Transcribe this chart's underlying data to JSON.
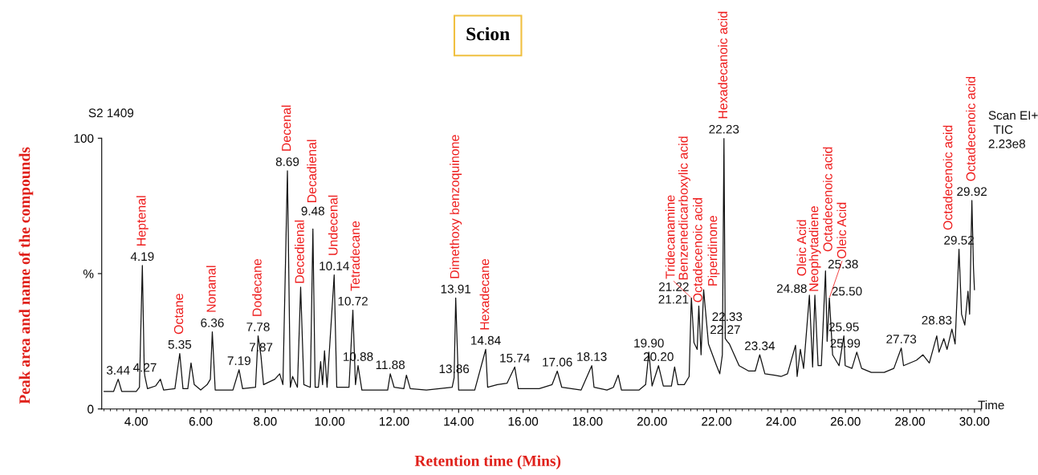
{
  "chart_data": {
    "type": "line",
    "title": "Scion",
    "xlabel": "Retention time (Mins)",
    "ylabel": "Peak area and name of the compounds",
    "xlim": [
      2.93,
      30.2
    ],
    "ylim": [
      0,
      100
    ],
    "xticks": [
      {
        "value": 4,
        "label": "4.00"
      },
      {
        "value": 6,
        "label": "6.00"
      },
      {
        "value": 8,
        "label": "8.00"
      },
      {
        "value": 10,
        "label": "10.00"
      },
      {
        "value": 12,
        "label": "12.00"
      },
      {
        "value": 14,
        "label": "14.00"
      },
      {
        "value": 16,
        "label": "16.00"
      },
      {
        "value": 18,
        "label": "18.00"
      },
      {
        "value": 20,
        "label": "20.00"
      },
      {
        "value": 22,
        "label": "22.00"
      },
      {
        "value": 24,
        "label": "24.00"
      },
      {
        "value": 26,
        "label": "26.00"
      },
      {
        "value": 28,
        "label": "28.00"
      },
      {
        "value": 30,
        "label": "30.00"
      }
    ],
    "yticks": [
      0,
      {
        "value": 50,
        "label": "%"
      },
      100
    ],
    "grid": false,
    "marker": "none",
    "line_style": "solid",
    "series": [
      {
        "color": "#111111",
        "x": [
          3.0,
          3.3,
          3.44,
          3.55,
          4.0,
          4.1,
          4.19,
          4.25,
          4.27,
          4.35,
          4.6,
          4.75,
          4.85,
          5.2,
          5.35,
          5.45,
          5.6,
          5.7,
          5.8,
          6.0,
          6.2,
          6.3,
          6.36,
          6.45,
          7.0,
          7.19,
          7.3,
          7.7,
          7.78,
          7.87,
          7.95,
          8.3,
          8.45,
          8.55,
          8.69,
          8.78,
          8.85,
          9.0,
          9.1,
          9.2,
          9.4,
          9.48,
          9.55,
          9.65,
          9.72,
          9.78,
          9.84,
          9.92,
          10.14,
          10.22,
          10.6,
          10.72,
          10.8,
          10.88,
          11.0,
          11.8,
          11.88,
          12.0,
          12.3,
          12.38,
          12.5,
          13.0,
          13.4,
          13.8,
          13.86,
          13.91,
          14.0,
          14.5,
          14.84,
          14.9,
          15.2,
          15.5,
          15.74,
          15.85,
          16.5,
          16.9,
          17.06,
          17.2,
          17.8,
          18.13,
          18.2,
          18.6,
          18.8,
          18.95,
          19.05,
          19.6,
          19.8,
          19.9,
          20.0,
          20.2,
          20.35,
          20.6,
          20.7,
          20.8,
          21.0,
          21.15,
          21.21,
          21.22,
          21.3,
          21.4,
          21.45,
          21.52,
          21.6,
          21.75,
          22.0,
          22.1,
          22.18,
          22.23,
          22.27,
          22.33,
          22.4,
          22.7,
          23.0,
          23.2,
          23.34,
          23.5,
          23.8,
          24.0,
          24.2,
          24.45,
          24.5,
          24.6,
          24.7,
          24.88,
          24.98,
          25.05,
          25.15,
          25.25,
          25.38,
          25.43,
          25.5,
          25.6,
          25.7,
          25.8,
          25.95,
          25.99,
          26.2,
          26.35,
          26.5,
          26.8,
          27.2,
          27.5,
          27.73,
          27.8,
          28.2,
          28.4,
          28.6,
          28.83,
          28.9,
          29.05,
          29.15,
          29.3,
          29.4,
          29.52,
          29.6,
          29.7,
          29.8,
          29.85,
          29.92,
          29.97,
          30.0
        ],
        "values": [
          6.5,
          6.5,
          11,
          6.5,
          6.5,
          8,
          53,
          14,
          12,
          7.5,
          8.5,
          11,
          7,
          7.5,
          20.5,
          7.5,
          7.5,
          17,
          9,
          7,
          9,
          11,
          28.5,
          7,
          7,
          14.5,
          7.5,
          8,
          27,
          19.5,
          9,
          11,
          13,
          9,
          88,
          8,
          12,
          8,
          45,
          9,
          8,
          66.5,
          8,
          8,
          17.5,
          9,
          21.5,
          8,
          49.5,
          8,
          8,
          36.5,
          9,
          16,
          7,
          7,
          13,
          8,
          7.5,
          12.5,
          7.5,
          7,
          7.5,
          8,
          11.5,
          41,
          7,
          7,
          22,
          8,
          9,
          9.5,
          15.5,
          7.5,
          7.5,
          9,
          14,
          8,
          7,
          16,
          8,
          7,
          8,
          12.5,
          7,
          7,
          9,
          21,
          8.5,
          16,
          8.5,
          8.5,
          15.5,
          9,
          9,
          12,
          38,
          41,
          24.5,
          22,
          38,
          20,
          44,
          24,
          16,
          13,
          20,
          100,
          26,
          25,
          24,
          16,
          14,
          14,
          20,
          13,
          12.5,
          12,
          13,
          23.5,
          12,
          22,
          15,
          42,
          15.5,
          42,
          16,
          16,
          51,
          25,
          41,
          20,
          18,
          16,
          27,
          16,
          15,
          21,
          15,
          13.5,
          13.5,
          15,
          22.5,
          16,
          18,
          20,
          17,
          27,
          21,
          26,
          22,
          29.5,
          24,
          59,
          35,
          31,
          43.5,
          35,
          77,
          52,
          44
        ]
      }
    ],
    "annotations": [
      {
        "text": "3.44",
        "x": 3.44,
        "y": 11
      },
      {
        "text": "4.19",
        "x": 4.19,
        "y": 53
      },
      {
        "text": "4.27",
        "x": 4.27,
        "y": 12
      },
      {
        "text": "5.35",
        "x": 5.35,
        "y": 20.5
      },
      {
        "text": "6.36",
        "x": 6.36,
        "y": 28.5
      },
      {
        "text": "7.19",
        "x": 7.19,
        "y": 14.5
      },
      {
        "text": "7.78",
        "x": 7.78,
        "y": 27
      },
      {
        "text": "7.87",
        "x": 7.87,
        "y": 19.5
      },
      {
        "text": "8.69",
        "x": 8.69,
        "y": 88
      },
      {
        "text": "9.48",
        "x": 9.48,
        "y": 66.5
      },
      {
        "text": "10.14",
        "x": 10.14,
        "y": 49.5
      },
      {
        "text": "10.72",
        "x": 10.72,
        "y": 36.5
      },
      {
        "text": "10.88",
        "x": 10.88,
        "y": 16
      },
      {
        "text": "11.88",
        "x": 11.88,
        "y": 13
      },
      {
        "text": "13.86",
        "x": 13.86,
        "y": 11.5
      },
      {
        "text": "13.91",
        "x": 13.91,
        "y": 41
      },
      {
        "text": "14.84",
        "x": 14.84,
        "y": 22
      },
      {
        "text": "15.74",
        "x": 15.74,
        "y": 15.5
      },
      {
        "text": "17.06",
        "x": 17.06,
        "y": 14
      },
      {
        "text": "18.13",
        "x": 18.13,
        "y": 16
      },
      {
        "text": "19.90",
        "x": 19.9,
        "y": 21
      },
      {
        "text": "20.20",
        "x": 20.2,
        "y": 16
      },
      {
        "text": "21.21",
        "x": 21.21,
        "y": 38
      },
      {
        "text": "21.22",
        "x": 21.22,
        "y": 41
      },
      {
        "text": "22.23",
        "x": 22.23,
        "y": 100
      },
      {
        "text": "22.27",
        "x": 22.27,
        "y": 26
      },
      {
        "text": "22.33",
        "x": 22.33,
        "y": 25
      },
      {
        "text": "23.34",
        "x": 23.34,
        "y": 20
      },
      {
        "text": "24.88",
        "x": 24.88,
        "y": 42
      },
      {
        "text": "25.38",
        "x": 25.38,
        "y": 51
      },
      {
        "text": "25.50",
        "x": 25.5,
        "y": 41
      },
      {
        "text": "25.95",
        "x": 25.95,
        "y": 27
      },
      {
        "text": "25.99",
        "x": 25.99,
        "y": 16
      },
      {
        "text": "27.73",
        "x": 27.73,
        "y": 22.5
      },
      {
        "text": "28.83",
        "x": 28.83,
        "y": 27
      },
      {
        "text": "29.52",
        "x": 29.52,
        "y": 59
      },
      {
        "text": "29.92",
        "x": 29.92,
        "y": 77
      },
      {
        "text": "Heptenal",
        "x": 4.19,
        "y": 53
      },
      {
        "text": "Octane",
        "x": 5.35,
        "y": 20.5
      },
      {
        "text": "Nonanal",
        "x": 6.36,
        "y": 28.5
      },
      {
        "text": "Dodecane",
        "x": 7.78,
        "y": 27
      },
      {
        "text": "Decenal",
        "x": 8.69,
        "y": 88
      },
      {
        "text": "Decedienal",
        "x": 9.1,
        "y": 45
      },
      {
        "text": "Decadienal",
        "x": 9.48,
        "y": 66.5
      },
      {
        "text": "Undecenal",
        "x": 10.14,
        "y": 49.5
      },
      {
        "text": "Tetradecane",
        "x": 10.72,
        "y": 36.5
      },
      {
        "text": "Dimethoxy benzoquinone",
        "x": 13.91,
        "y": 41
      },
      {
        "text": "Hexadecane",
        "x": 14.84,
        "y": 22
      },
      {
        "text": "Benzenedicarboxylic acid",
        "x": 21.21,
        "y": 38
      },
      {
        "text": "Tridecanamine",
        "x": 21.22,
        "y": 41
      },
      {
        "text": "Octadecenoic acid",
        "x": 21.45,
        "y": 38
      },
      {
        "text": "Piperidinone",
        "x": 21.6,
        "y": 44
      },
      {
        "text": "Hexadecanoic acid",
        "x": 22.23,
        "y": 100
      },
      {
        "text": "Oleic Acid",
        "x": 24.88,
        "y": 42
      },
      {
        "text": "Neophytadiene",
        "x": 25.05,
        "y": 42
      },
      {
        "text": "Octadecenoic acid",
        "x": 25.38,
        "y": 51
      },
      {
        "text": "Oleic Acid",
        "x": 25.5,
        "y": 41
      },
      {
        "text": "Octadecenoic acid",
        "x": 29.52,
        "y": 59
      },
      {
        "text": "Octadecenoic acid",
        "x": 29.92,
        "y": 77
      },
      "S2 1409",
      "Scan EI+",
      "TIC",
      "2.23e8",
      "Time"
    ]
  }
}
